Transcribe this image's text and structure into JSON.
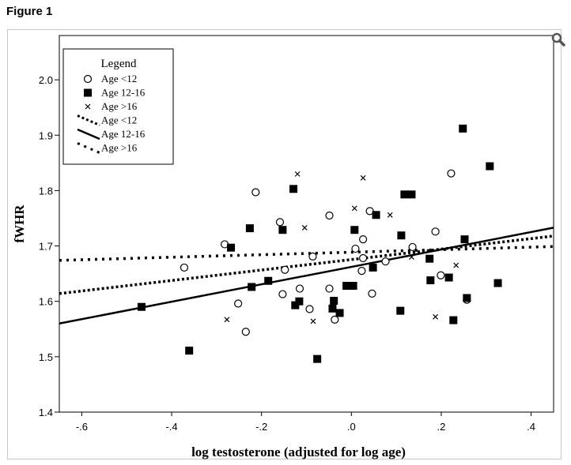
{
  "figure_title": "Figure 1",
  "icons": {
    "zoom": "magnifier-icon"
  },
  "chart_data": {
    "type": "scatter",
    "xlabel": "log testosterone (adjusted for log age)",
    "ylabel": "fWHR",
    "xlim": [
      -0.65,
      0.45
    ],
    "ylim": [
      1.4,
      2.08
    ],
    "xticks": [
      -0.6,
      -0.4,
      -0.2,
      0.0,
      0.2,
      0.4
    ],
    "xtick_labels": [
      "-.6",
      "-.4",
      "-.2",
      ".0",
      ".2",
      ".4"
    ],
    "yticks": [
      1.4,
      1.5,
      1.6,
      1.7,
      1.8,
      1.9,
      2.0
    ],
    "ytick_labels": [
      "1.4",
      "1.5",
      "1.6",
      "1.7",
      "1.8",
      "1.9",
      "2.0"
    ],
    "grid": false,
    "legend": {
      "title": "Legend",
      "placement": "top-left",
      "entries": [
        "Age <12",
        "Age 12-16",
        "Age >16",
        "Age <12",
        "Age 12-16",
        "Age >16"
      ]
    },
    "series": [
      {
        "name": "Age <12",
        "marker": "open-circle",
        "points": [
          [
            -0.282,
            1.703
          ],
          [
            -0.372,
            1.661
          ],
          [
            -0.252,
            1.596
          ],
          [
            -0.235,
            1.545
          ],
          [
            -0.213,
            1.797
          ],
          [
            -0.159,
            1.743
          ],
          [
            -0.148,
            1.657
          ],
          [
            -0.153,
            1.613
          ],
          [
            -0.115,
            1.623
          ],
          [
            -0.086,
            1.681
          ],
          [
            -0.093,
            1.586
          ],
          [
            -0.049,
            1.755
          ],
          [
            -0.049,
            1.623
          ],
          [
            -0.037,
            1.567
          ],
          [
            0.009,
            1.695
          ],
          [
            0.023,
            1.655
          ],
          [
            0.026,
            1.712
          ],
          [
            0.026,
            1.678
          ],
          [
            0.041,
            1.763
          ],
          [
            0.046,
            1.614
          ],
          [
            0.076,
            1.672
          ],
          [
            0.136,
            1.698
          ],
          [
            0.187,
            1.726
          ],
          [
            0.199,
            1.647
          ],
          [
            0.222,
            1.831
          ],
          [
            0.257,
            1.603
          ]
        ]
      },
      {
        "name": "Age 12-16",
        "marker": "filled-square",
        "points": [
          [
            -0.467,
            1.59
          ],
          [
            -0.361,
            1.511
          ],
          [
            -0.268,
            1.697
          ],
          [
            -0.226,
            1.732
          ],
          [
            -0.222,
            1.626
          ],
          [
            -0.185,
            1.637
          ],
          [
            -0.129,
            1.803
          ],
          [
            -0.153,
            1.729
          ],
          [
            -0.125,
            1.593
          ],
          [
            -0.116,
            1.6
          ],
          [
            -0.076,
            1.496
          ],
          [
            -0.042,
            1.587
          ],
          [
            -0.039,
            1.601
          ],
          [
            -0.026,
            1.579
          ],
          [
            -0.011,
            1.628
          ],
          [
            0.004,
            1.628
          ],
          [
            0.007,
            1.729
          ],
          [
            0.048,
            1.661
          ],
          [
            0.055,
            1.756
          ],
          [
            0.109,
            1.583
          ],
          [
            0.111,
            1.719
          ],
          [
            0.118,
            1.793
          ],
          [
            0.134,
            1.793
          ],
          [
            0.174,
            1.677
          ],
          [
            0.176,
            1.638
          ],
          [
            0.217,
            1.643
          ],
          [
            0.248,
            1.912
          ],
          [
            0.252,
            1.712
          ],
          [
            0.227,
            1.566
          ],
          [
            0.257,
            1.606
          ],
          [
            0.308,
            1.844
          ],
          [
            0.326,
            1.633
          ]
        ]
      },
      {
        "name": "Age >16",
        "marker": "x",
        "points": [
          [
            -0.277,
            1.567
          ],
          [
            -0.12,
            1.83
          ],
          [
            -0.104,
            1.733
          ],
          [
            -0.085,
            1.564
          ],
          [
            0.007,
            1.768
          ],
          [
            0.026,
            1.823
          ],
          [
            0.086,
            1.756
          ],
          [
            0.134,
            1.68
          ],
          [
            0.187,
            1.572
          ],
          [
            0.233,
            1.665
          ]
        ]
      }
    ],
    "fit_lines": [
      {
        "name": "Age <12",
        "style": "dotted",
        "x": [
          -0.65,
          0.45
        ],
        "y": [
          1.614,
          1.718
        ]
      },
      {
        "name": "Age 12-16",
        "style": "solid",
        "x": [
          -0.65,
          0.45
        ],
        "y": [
          1.56,
          1.733
        ]
      },
      {
        "name": "Age >16",
        "style": "dotted-sparse",
        "x": [
          -0.65,
          0.45
        ],
        "y": [
          1.674,
          1.699
        ]
      }
    ]
  }
}
